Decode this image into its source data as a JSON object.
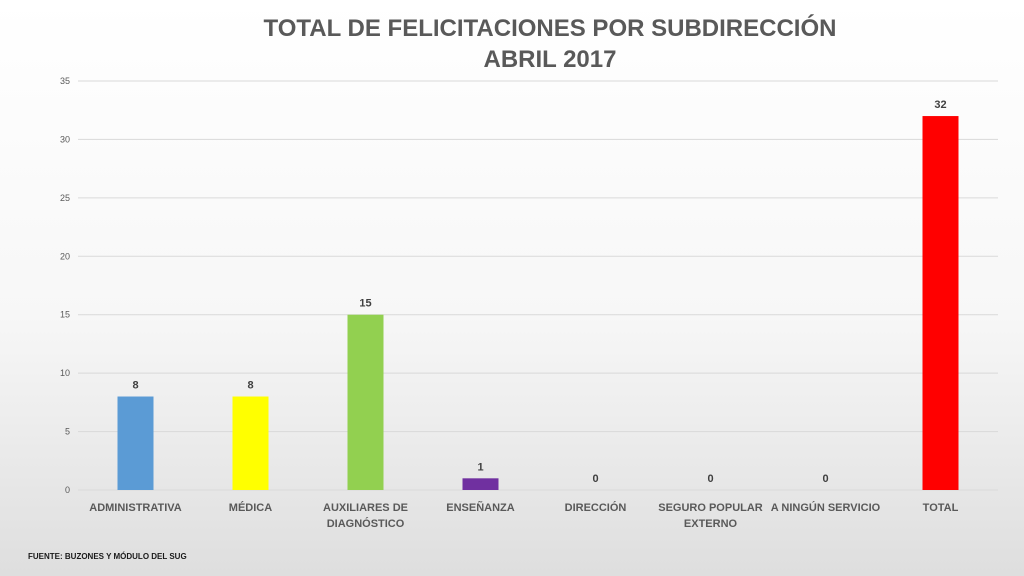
{
  "chart_data": {
    "type": "bar",
    "title_lines": [
      "TOTAL DE FELICITACIONES POR SUBDIRECCIÓN",
      "ABRIL 2017"
    ],
    "categories": [
      [
        "ADMINISTRATIVA"
      ],
      [
        "MÉDICA"
      ],
      [
        "AUXILIARES DE",
        "DIAGNÓSTICO"
      ],
      [
        "ENSEÑANZA"
      ],
      [
        "DIRECCIÓN"
      ],
      [
        "SEGURO POPULAR",
        "EXTERNO"
      ],
      [
        "A NINGÚN SERVICIO"
      ],
      [
        "TOTAL"
      ]
    ],
    "values": [
      8,
      8,
      15,
      1,
      0,
      0,
      0,
      32
    ],
    "colors": [
      "#5b9bd5",
      "#ffff00",
      "#92d050",
      "#7030a0",
      "#5b9bd5",
      "#5b9bd5",
      "#5b9bd5",
      "#ff0000"
    ],
    "ylim": [
      0,
      35
    ],
    "yticks": [
      0,
      5,
      10,
      15,
      20,
      25,
      30,
      35
    ],
    "grid": true,
    "legend": "none"
  },
  "footer": {
    "source": "FUENTE: BUZONES Y MÓDULO DEL SUG"
  }
}
